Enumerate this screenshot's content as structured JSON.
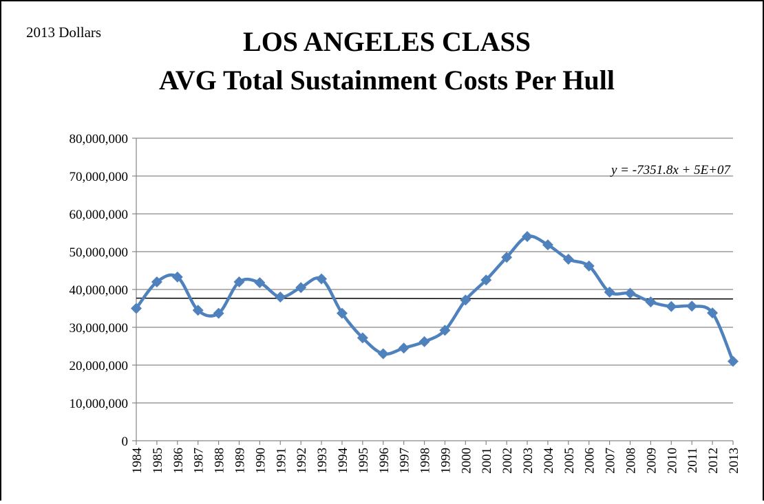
{
  "chart_data": {
    "type": "line",
    "title": "LOS ANGELES CLASS",
    "subtitle": "AVG Total Sustainment Costs Per Hull",
    "note": "2013 Dollars",
    "categories": [
      "1984",
      "1985",
      "1986",
      "1987",
      "1988",
      "1989",
      "1990",
      "1991",
      "1992",
      "1993",
      "1994",
      "1995",
      "1996",
      "1997",
      "1998",
      "1999",
      "2000",
      "2001",
      "2002",
      "2003",
      "2004",
      "2005",
      "2006",
      "2007",
      "2008",
      "2009",
      "2010",
      "2011",
      "2012",
      "2013"
    ],
    "series": [
      {
        "name": "AVG Total Sustainment Costs Per Hull",
        "color": "#4f81bd",
        "values": [
          35000000,
          42000000,
          43300000,
          34500000,
          33700000,
          42000000,
          41800000,
          38000000,
          40500000,
          42800000,
          33700000,
          27200000,
          23000000,
          24500000,
          26200000,
          29200000,
          37200000,
          42500000,
          48500000,
          54000000,
          51800000,
          48000000,
          46200000,
          39300000,
          39000000,
          36700000,
          35500000,
          35600000,
          33800000,
          21000000
        ]
      }
    ],
    "trendline": {
      "equation": "y = -7351.8x + 5E+07",
      "color": "#000000",
      "values": [
        37700000,
        37500000
      ]
    },
    "ylim": [
      0,
      80000000
    ],
    "yticks": [
      0,
      {
        "value": 10000000,
        "label": "10,000,000"
      },
      {
        "value": 20000000,
        "label": "20,000,000"
      },
      {
        "value": 30000000,
        "label": "30,000,000"
      },
      {
        "value": 40000000,
        "label": "40,000,000"
      },
      {
        "value": 50000000,
        "label": "50,000,000"
      },
      {
        "value": 60000000,
        "label": "60,000,000"
      },
      {
        "value": 70000000,
        "label": "70,000,000"
      },
      {
        "value": 80000000,
        "label": "80,000,000"
      }
    ],
    "grid": true
  }
}
